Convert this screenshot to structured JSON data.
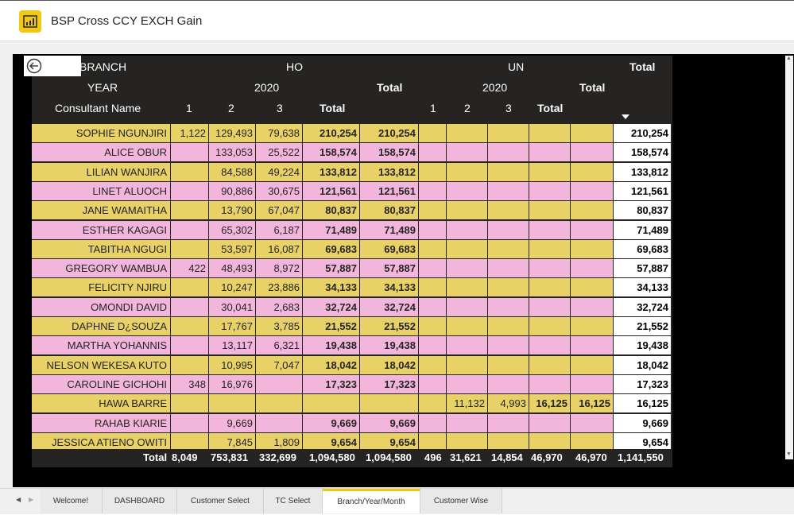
{
  "app": {
    "title": "BSP Cross CCY EXCH Gain"
  },
  "matrix": {
    "h_branch": "BRANCH",
    "h_year": "YEAR",
    "h_consultant": "Consultant Name",
    "ho": "HO",
    "un": "UN",
    "total": "Total",
    "ho_year": "2020",
    "un_year": "2020",
    "months": [
      "1",
      "2",
      "3"
    ],
    "rows": [
      {
        "name": "SOPHIE NGUNJIRI",
        "c": [
          "1,122",
          "129,493",
          "79,638",
          "210,254",
          "210,254",
          "",
          "",
          "",
          "",
          "",
          "210,254"
        ]
      },
      {
        "name": "ALICE OBUR",
        "c": [
          "",
          "133,053",
          "25,522",
          "158,574",
          "158,574",
          "",
          "",
          "",
          "",
          "",
          "158,574"
        ]
      },
      {
        "name": "LILIAN WANJIRA",
        "c": [
          "",
          "84,588",
          "49,224",
          "133,812",
          "133,812",
          "",
          "",
          "",
          "",
          "",
          "133,812"
        ]
      },
      {
        "name": "LINET ALUOCH",
        "c": [
          "",
          "90,886",
          "30,675",
          "121,561",
          "121,561",
          "",
          "",
          "",
          "",
          "",
          "121,561"
        ]
      },
      {
        "name": "JANE WAMAITHA",
        "c": [
          "",
          "13,790",
          "67,047",
          "80,837",
          "80,837",
          "",
          "",
          "",
          "",
          "",
          "80,837"
        ]
      },
      {
        "name": "ESTHER KAGAGI",
        "c": [
          "",
          "65,302",
          "6,187",
          "71,489",
          "71,489",
          "",
          "",
          "",
          "",
          "",
          "71,489"
        ]
      },
      {
        "name": "TABITHA NGUGI",
        "c": [
          "",
          "53,597",
          "16,087",
          "69,683",
          "69,683",
          "",
          "",
          "",
          "",
          "",
          "69,683"
        ]
      },
      {
        "name": "GREGORY WAMBUA",
        "c": [
          "422",
          "48,493",
          "8,972",
          "57,887",
          "57,887",
          "",
          "",
          "",
          "",
          "",
          "57,887"
        ]
      },
      {
        "name": "FELICITY NJIRU",
        "c": [
          "",
          "10,247",
          "23,886",
          "34,133",
          "34,133",
          "",
          "",
          "",
          "",
          "",
          "34,133"
        ]
      },
      {
        "name": "OMONDI DAVID",
        "c": [
          "",
          "30,041",
          "2,683",
          "32,724",
          "32,724",
          "",
          "",
          "",
          "",
          "",
          "32,724"
        ]
      },
      {
        "name": "DAPHNE D¿SOUZA",
        "c": [
          "",
          "17,767",
          "3,785",
          "21,552",
          "21,552",
          "",
          "",
          "",
          "",
          "",
          "21,552"
        ]
      },
      {
        "name": "MARTHA YOHANNIS",
        "c": [
          "",
          "13,117",
          "6,321",
          "19,438",
          "19,438",
          "",
          "",
          "",
          "",
          "",
          "19,438"
        ]
      },
      {
        "name": "NELSON WEKESA KUTO",
        "c": [
          "",
          "10,995",
          "7,047",
          "18,042",
          "18,042",
          "",
          "",
          "",
          "",
          "",
          "18,042"
        ]
      },
      {
        "name": "CAROLINE GICHOHI",
        "c": [
          "348",
          "16,976",
          "",
          "17,323",
          "17,323",
          "",
          "",
          "",
          "",
          "",
          "17,323"
        ]
      },
      {
        "name": "HAWA BARRE",
        "c": [
          "",
          "",
          "",
          "",
          "",
          "",
          "11,132",
          "4,993",
          "16,125",
          "16,125",
          "16,125"
        ]
      },
      {
        "name": "RAHAB KIARIE",
        "c": [
          "",
          "9,669",
          "",
          "9,669",
          "9,669",
          "",
          "",
          "",
          "",
          "",
          "9,669"
        ]
      },
      {
        "name": "JESSICA ATIENO OWITI",
        "c": [
          "",
          "7,845",
          "1,809",
          "9,654",
          "9,654",
          "",
          "",
          "",
          "",
          "",
          "9,654"
        ]
      }
    ],
    "totals": {
      "label": "Total",
      "c": [
        "8,049",
        "753,831",
        "332,699",
        "1,094,580",
        "1,094,580",
        "496",
        "31,621",
        "14,854",
        "46,970",
        "46,970",
        "1,141,550"
      ]
    }
  },
  "tabs": [
    "Welcome!",
    "DASHBOARD",
    "Customer Select",
    "TC Select",
    "Branch/Year/Month",
    "Customer Wise"
  ],
  "colors": {
    "accent": "#f2c811",
    "row_gold": "#e8d166",
    "row_pink": "#f2b6dc",
    "header_bg": "#252423"
  }
}
